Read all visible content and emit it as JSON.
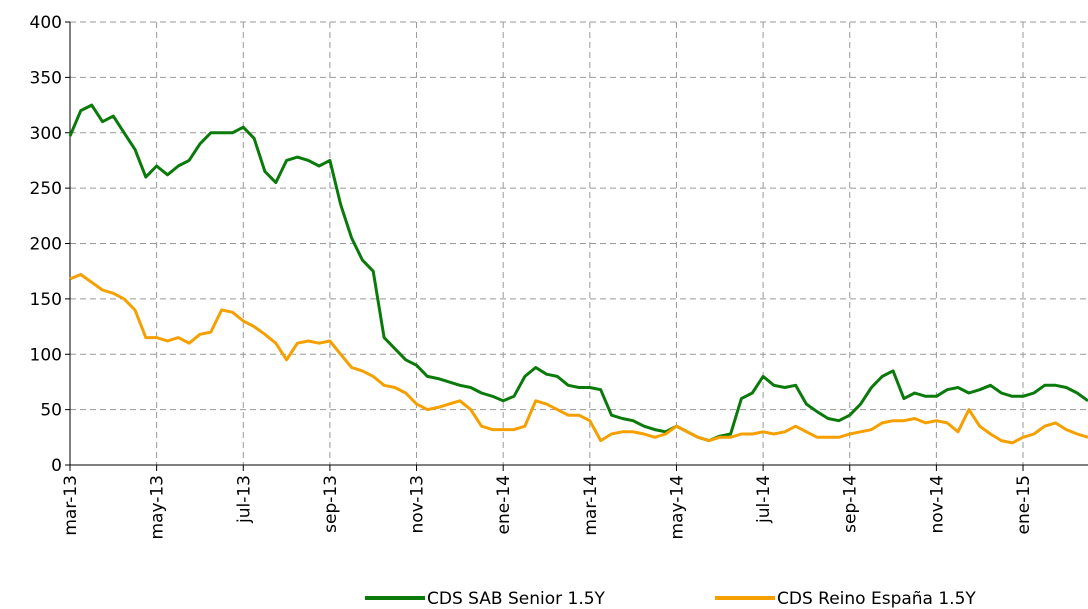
{
  "chart_data": {
    "type": "line",
    "categories": [
      "mar-13",
      null,
      null,
      null,
      null,
      null,
      null,
      null,
      "may-13",
      null,
      null,
      null,
      null,
      null,
      null,
      null,
      "jul-13",
      null,
      null,
      null,
      null,
      null,
      null,
      null,
      "sep-13",
      null,
      null,
      null,
      null,
      null,
      null,
      null,
      "nov-13",
      null,
      null,
      null,
      null,
      null,
      null,
      null,
      "ene-14",
      null,
      null,
      null,
      null,
      null,
      null,
      null,
      "mar-14",
      null,
      null,
      null,
      null,
      null,
      null,
      null,
      "may-14",
      null,
      null,
      null,
      null,
      null,
      null,
      null,
      "jul-14",
      null,
      null,
      null,
      null,
      null,
      null,
      null,
      "sep-14",
      null,
      null,
      null,
      null,
      null,
      null,
      null,
      "nov-14",
      null,
      null,
      null,
      null,
      null,
      null,
      null,
      "ene-15",
      null,
      null,
      null,
      null,
      null,
      null
    ],
    "series": [
      {
        "name": "CDS SAB Senior 1.5Y",
        "color": "#0a7a0a",
        "values": [
          297,
          320,
          325,
          310,
          315,
          300,
          285,
          260,
          270,
          262,
          270,
          275,
          290,
          300,
          300,
          300,
          305,
          295,
          265,
          255,
          275,
          278,
          275,
          270,
          275,
          235,
          205,
          185,
          175,
          115,
          105,
          95,
          90,
          80,
          78,
          75,
          72,
          70,
          65,
          62,
          58,
          62,
          80,
          88,
          82,
          80,
          72,
          70,
          70,
          68,
          45,
          42,
          40,
          35,
          32,
          30,
          35,
          30,
          25,
          22,
          26,
          28,
          60,
          65,
          80,
          72,
          70,
          72,
          55,
          48,
          42,
          40,
          45,
          55,
          70,
          80,
          85,
          60,
          65,
          62,
          62,
          68,
          70,
          65,
          68,
          72,
          65,
          62,
          62,
          65,
          72,
          72,
          70,
          65,
          58
        ]
      },
      {
        "name": "CDS Reino España 1.5Y",
        "color": "#f5a000",
        "values": [
          168,
          172,
          165,
          158,
          155,
          150,
          140,
          115,
          115,
          112,
          115,
          110,
          118,
          120,
          140,
          138,
          130,
          125,
          118,
          110,
          95,
          110,
          112,
          110,
          112,
          100,
          88,
          85,
          80,
          72,
          70,
          65,
          55,
          50,
          52,
          55,
          58,
          50,
          35,
          32,
          32,
          32,
          35,
          58,
          55,
          50,
          45,
          45,
          40,
          22,
          28,
          30,
          30,
          28,
          25,
          28,
          35,
          30,
          25,
          22,
          25,
          25,
          28,
          28,
          30,
          28,
          30,
          35,
          30,
          25,
          25,
          25,
          28,
          30,
          32,
          38,
          40,
          40,
          42,
          38,
          40,
          38,
          30,
          50,
          35,
          28,
          22,
          20,
          25,
          28,
          35,
          38,
          32,
          28,
          25
        ]
      }
    ],
    "ylim": [
      0,
      400
    ],
    "yticks": [
      0,
      50,
      100,
      150,
      200,
      250,
      300,
      350,
      400
    ],
    "grid": true
  }
}
